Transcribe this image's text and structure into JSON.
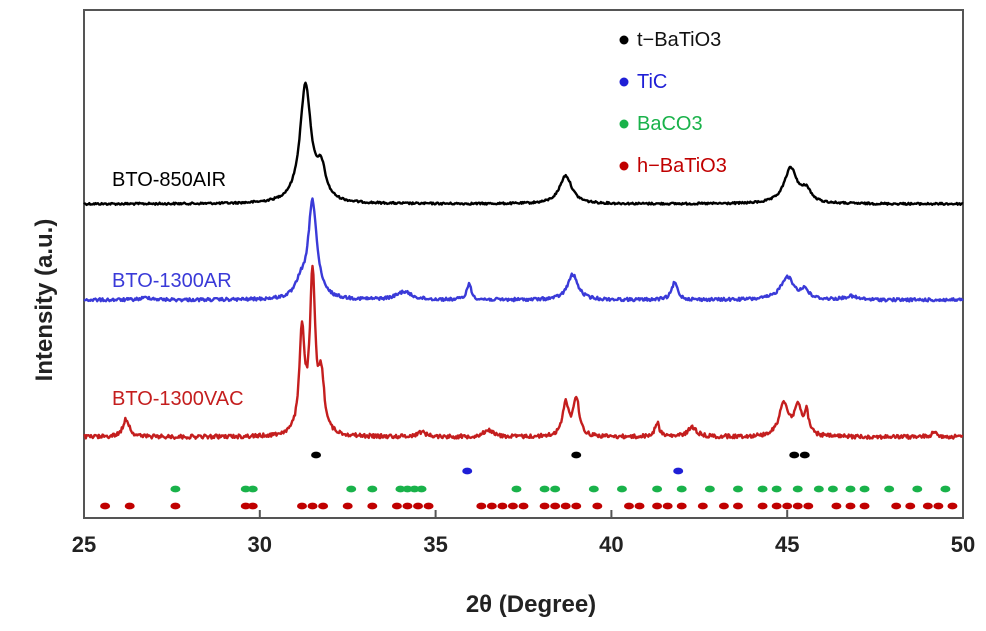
{
  "chart_data": {
    "type": "line",
    "xlabel": "2θ (Degree)",
    "ylabel": "Intensity (a.u.)",
    "xlim": [
      25,
      50
    ],
    "xticks": [
      25,
      30,
      35,
      40,
      45,
      50
    ],
    "y_ticks_shown": false,
    "grid": false,
    "legend_placement": "top-right",
    "legend": [
      {
        "name": "t−BaTiO3",
        "color": "#000000"
      },
      {
        "name": "TiC",
        "color": "#1f1fd6"
      },
      {
        "name": "BaCO3",
        "color": "#19b24a"
      },
      {
        "name": "h−BaTiO3",
        "color": "#c00000"
      }
    ],
    "series": [
      {
        "name": "BTO-850AIR",
        "color": "#000000",
        "baseline": 0.0,
        "peaks": [
          {
            "x": 31.3,
            "height": 1.0,
            "width": 0.38
          },
          {
            "x": 31.75,
            "height": 0.25,
            "width": 0.3
          },
          {
            "x": 38.7,
            "height": 0.24,
            "width": 0.42
          },
          {
            "x": 45.1,
            "height": 0.3,
            "width": 0.45
          },
          {
            "x": 45.55,
            "height": 0.1,
            "width": 0.3
          }
        ]
      },
      {
        "name": "BTO-1300AR",
        "color": "#3a3ad8",
        "baseline": 0.0,
        "peaks": [
          {
            "x": 31.5,
            "height": 0.85,
            "width": 0.3
          },
          {
            "x": 31.15,
            "height": 0.12,
            "width": 0.3
          },
          {
            "x": 34.1,
            "height": 0.07,
            "width": 0.5
          },
          {
            "x": 35.95,
            "height": 0.14,
            "width": 0.15
          },
          {
            "x": 38.9,
            "height": 0.22,
            "width": 0.35
          },
          {
            "x": 41.8,
            "height": 0.15,
            "width": 0.2
          },
          {
            "x": 45.0,
            "height": 0.2,
            "width": 0.45
          },
          {
            "x": 45.5,
            "height": 0.08,
            "width": 0.25
          },
          {
            "x": 46.8,
            "height": 0.03,
            "width": 0.4
          },
          {
            "x": 26.8,
            "height": 0.02,
            "width": 0.4
          }
        ]
      },
      {
        "name": "BTO-1300VAC",
        "color": "#c41e1e",
        "baseline": 0.0,
        "peaks": [
          {
            "x": 26.2,
            "height": 0.15,
            "width": 0.22
          },
          {
            "x": 31.2,
            "height": 0.85,
            "width": 0.18
          },
          {
            "x": 31.5,
            "height": 1.3,
            "width": 0.18
          },
          {
            "x": 31.75,
            "height": 0.45,
            "width": 0.2
          },
          {
            "x": 34.6,
            "height": 0.04,
            "width": 0.3
          },
          {
            "x": 36.5,
            "height": 0.06,
            "width": 0.3
          },
          {
            "x": 38.7,
            "height": 0.28,
            "width": 0.2
          },
          {
            "x": 39.0,
            "height": 0.32,
            "width": 0.2
          },
          {
            "x": 41.3,
            "height": 0.12,
            "width": 0.15
          },
          {
            "x": 42.3,
            "height": 0.08,
            "width": 0.3
          },
          {
            "x": 44.9,
            "height": 0.28,
            "width": 0.3
          },
          {
            "x": 45.3,
            "height": 0.24,
            "width": 0.25
          },
          {
            "x": 45.55,
            "height": 0.18,
            "width": 0.15
          },
          {
            "x": 49.2,
            "height": 0.04,
            "width": 0.2
          }
        ]
      }
    ],
    "reference_markers": [
      {
        "phase": "t−BaTiO3",
        "color": "#000000",
        "row": 1,
        "x": [
          31.6,
          39.0,
          45.2,
          45.5
        ]
      },
      {
        "phase": "TiC",
        "color": "#1f1fd6",
        "row": 2,
        "x": [
          35.9,
          41.9
        ]
      },
      {
        "phase": "BaCO3",
        "color": "#19b24a",
        "row": 3,
        "x": [
          27.6,
          29.6,
          29.8,
          32.6,
          33.2,
          34.0,
          34.2,
          34.4,
          34.6,
          37.3,
          38.1,
          38.4,
          39.5,
          40.3,
          41.3,
          42.0,
          42.8,
          43.6,
          44.3,
          44.7,
          45.3,
          45.9,
          46.3,
          46.8,
          47.2,
          47.9,
          48.7,
          49.5
        ]
      },
      {
        "phase": "h−BaTiO3",
        "color": "#c00000",
        "row": 4,
        "x": [
          25.6,
          26.3,
          27.6,
          29.6,
          29.8,
          31.2,
          31.5,
          31.8,
          32.5,
          33.2,
          33.9,
          34.2,
          34.5,
          34.8,
          36.3,
          36.6,
          36.9,
          37.2,
          37.5,
          38.1,
          38.4,
          38.7,
          39.0,
          39.6,
          40.5,
          40.8,
          41.3,
          41.6,
          42.0,
          42.6,
          43.2,
          43.6,
          44.3,
          44.7,
          45.0,
          45.3,
          45.6,
          46.4,
          46.8,
          47.2,
          48.1,
          48.5,
          49.0,
          49.3,
          49.7
        ]
      }
    ]
  }
}
